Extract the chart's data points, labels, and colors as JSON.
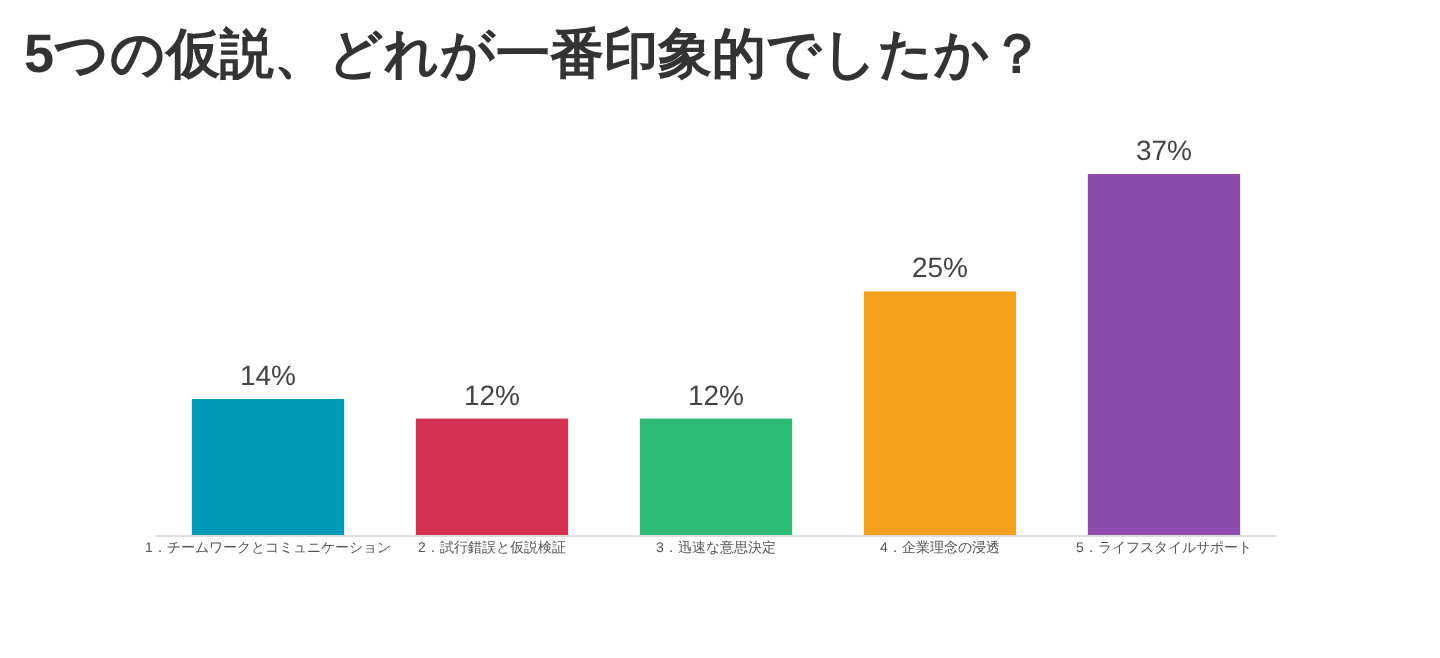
{
  "chart_data": {
    "type": "bar",
    "title": "5つの仮説、どれが一番印象的でしたか？",
    "categories": [
      "1．チームワークとコミュニケーション",
      "2．試行錯誤と仮説検証",
      "3．迅速な意思決定",
      "4．企業理念の浸透",
      "5．ライフスタイルサポート"
    ],
    "values": [
      14,
      12,
      12,
      25,
      37
    ],
    "value_labels": [
      "14%",
      "12%",
      "12%",
      "25%",
      "37%"
    ],
    "colors": [
      "#0099b9",
      "#d4304f",
      "#2dba74",
      "#f5a11d",
      "#8d4bae"
    ],
    "ylim": [
      0,
      37
    ]
  }
}
